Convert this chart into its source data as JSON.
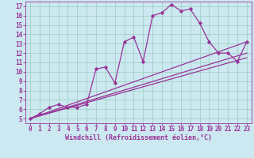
{
  "bg_color": "#cce8f0",
  "line_color": "#993399",
  "grid_color": "#99ccbb",
  "xlabel": "Windchill (Refroidissement éolien,°C)",
  "xlabel_fontsize": 6,
  "tick_fontsize": 5.5,
  "ylabel_ticks": [
    5,
    6,
    7,
    8,
    9,
    10,
    11,
    12,
    13,
    14,
    15,
    16,
    17
  ],
  "xlabel_ticks": [
    0,
    1,
    2,
    3,
    4,
    5,
    6,
    7,
    8,
    9,
    10,
    11,
    12,
    13,
    14,
    15,
    16,
    17,
    18,
    19,
    20,
    21,
    22,
    23
  ],
  "xlim": [
    -0.5,
    23.5
  ],
  "ylim": [
    4.5,
    17.5
  ],
  "curve1_x": [
    0,
    1,
    2,
    3,
    4,
    5,
    6,
    7,
    8,
    9,
    10,
    11,
    12,
    13,
    14,
    15,
    16,
    17,
    18,
    19,
    20,
    21,
    22,
    23
  ],
  "curve1_y": [
    5.0,
    5.5,
    6.2,
    6.5,
    6.2,
    6.2,
    6.5,
    10.3,
    10.5,
    8.8,
    13.2,
    13.7,
    11.1,
    16.0,
    16.3,
    17.2,
    16.5,
    16.7,
    15.2,
    13.2,
    12.0,
    12.0,
    11.1,
    13.2
  ],
  "curve2_x": [
    0,
    23
  ],
  "curve2_y": [
    5.0,
    13.2
  ],
  "curve3_x": [
    0,
    23
  ],
  "curve3_y": [
    5.0,
    12.0
  ],
  "curve4_x": [
    0,
    23
  ],
  "curve4_y": [
    5.0,
    11.5
  ]
}
